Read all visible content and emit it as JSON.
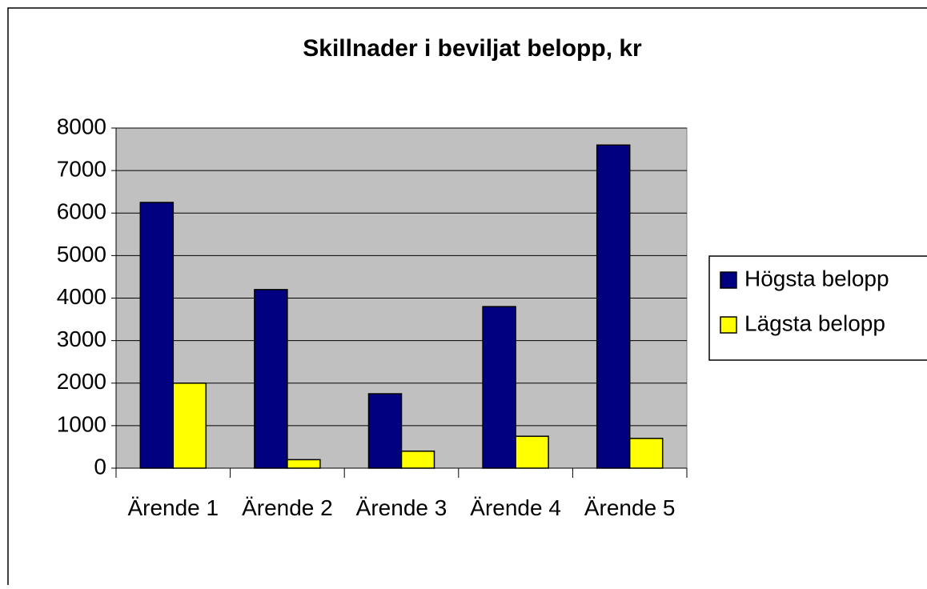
{
  "chart_data": {
    "type": "bar",
    "title": "Skillnader i beviljat belopp, kr",
    "categories": [
      "Ärende 1",
      "Ärende 2",
      "Ärende 3",
      "Ärende 4",
      "Ärende 5"
    ],
    "series": [
      {
        "name": "Högsta belopp",
        "color": "#000080",
        "values": [
          6250,
          4200,
          1750,
          3800,
          7600
        ]
      },
      {
        "name": "Lägsta belopp",
        "color": "#ffff00",
        "values": [
          2000,
          200,
          400,
          750,
          700
        ]
      }
    ],
    "ylim": [
      0,
      8000
    ],
    "yticks": [
      0,
      1000,
      2000,
      3000,
      4000,
      5000,
      6000,
      7000,
      8000
    ],
    "grid": true,
    "legend": "right"
  }
}
